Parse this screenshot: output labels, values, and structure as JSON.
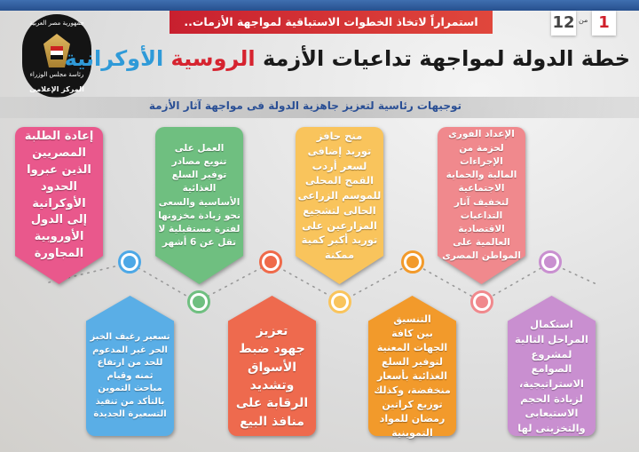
{
  "header": {
    "tagline": "استمراراً لاتخاذ الخطوات الاستباقية لمواجهة الأزمات..",
    "page_current": "1",
    "page_of": "من",
    "page_total": "12",
    "title_part1": "خطة الدولة لمواجهة تداعيات الأزمة",
    "title_part2": "الروسية",
    "title_part3": "الأوكرانية",
    "subtitle": "توجيهات رئاسية لتعزيز جاهزية الدولة فى مواجهة آثار الأزمة",
    "logo": {
      "line1": "جمهورية مصر العربية",
      "line2": "رئاسة مجلس الوزراء",
      "line3": "المركز الإعلامى"
    }
  },
  "colors": {
    "red": "#d6232f",
    "blue": "#2f9ad8",
    "pink": "#e85a8e",
    "green": "#6cbf7f",
    "yellow": "#f8c35a",
    "salmon": "#ef8a8e",
    "lightblue": "#5aaee6",
    "tomato": "#ee6b4f",
    "orange": "#f29a2b",
    "purple": "#c98fd0"
  },
  "cards_top": [
    {
      "color": "#e9588c",
      "dot": "#4da8e6",
      "lines": [
        "إعادة الطلبة",
        "المصريين",
        "الذين عبروا",
        "الحدود",
        "الأوكرانية",
        "إلى الدول",
        "الأوروبية",
        "المجاورة"
      ]
    },
    {
      "color": "#6fbf80",
      "dot": "#ef6a4a",
      "lines": [
        "العمل على",
        "تنويع مصادر",
        "توفير السلع",
        "الغذائية",
        "الأساسية والسعى",
        "نحو زيادة مخزونها",
        "لفترة مستقبلية لا",
        "تقل عن 6 أشهر"
      ]
    },
    {
      "color": "#f9c45c",
      "dot": "#f29a2b",
      "lines": [
        "منح حافز",
        "توريد إضافى",
        "لسعر أردب",
        "القمح المحلى",
        "للموسم الزراعى",
        "الحالى لتشجيع",
        "المزارعين على",
        "توريد أكبر كمية",
        "ممكنة"
      ]
    },
    {
      "color": "#f0898d",
      "dot": "#c98fd0",
      "lines": [
        "الإعداد الفورى",
        "لحزمة من الإجراءات",
        "المالية والحماية",
        "الاجتماعية",
        "لتخفيف آثار",
        "التداعيات",
        "الاقتصادية",
        "العالمية على",
        "المواطن المصرى"
      ]
    }
  ],
  "cards_bottom": [
    {
      "color": "#5aaee6",
      "dot": "#6fbf80",
      "lines": [
        "تسعير رغيف الخبز",
        "الحر غير المدعوم",
        "للحد من ارتفاع",
        "ثمنه وقيام",
        "مباحث التموين",
        "بالتأكد من تنفيذ",
        "التسعيرة الجديدة"
      ]
    },
    {
      "color": "#ee6a4e",
      "dot": "#f9c45c",
      "lines": [
        "تعزيز",
        "جهود ضبط",
        "الأسواق",
        "وتشديد",
        "الرقابة على",
        "منافذ البيع"
      ]
    },
    {
      "color": "#f29a2b",
      "dot": "#f0898d",
      "lines": [
        "التنسيق",
        "بين كافة",
        "الجهات المعنية",
        "لتوفير السلع",
        "الغذائية بأسعار",
        "منخفضة، وكذلك",
        "توزيع كراتين",
        "رمضان للمواد",
        "التموينية"
      ]
    },
    {
      "color": "#c98fd0",
      "lines": [
        "استكمال",
        "المراحل التالية",
        "لمشروع",
        "الصوامع",
        "الاستراتيجية،",
        "لزيادة الحجم",
        "الاستيعابى",
        "والتخزينى لها"
      ]
    }
  ]
}
